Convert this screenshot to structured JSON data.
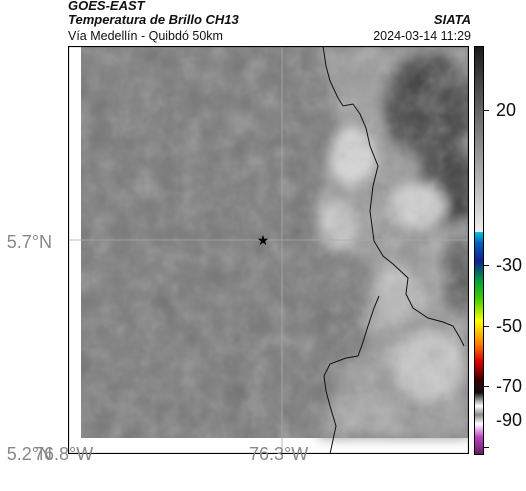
{
  "header": {
    "source": "GOES-EAST",
    "product": "Temperatura de Brillo CH13",
    "subtitle": "Vía Medellín - Quibdó 50km",
    "organization": "SIATA",
    "timestamp": "2024-03-14 11:29"
  },
  "axes": {
    "lat_ticks": [
      {
        "label": "5.7°N",
        "value": 5.7
      },
      {
        "label": "5.2°N",
        "value": 5.2
      }
    ],
    "lon_ticks": [
      {
        "label": "76.8°W",
        "value": -76.8
      },
      {
        "label": "76.3°W",
        "value": -76.3
      }
    ]
  },
  "map": {
    "marker": {
      "symbol": "★",
      "name": "star-marker"
    },
    "gridlines": true,
    "boundary_color": "#000000",
    "background_tone": "#777777"
  },
  "colorbar": {
    "tick_labels": [
      "20",
      "-30",
      "-50",
      "-70",
      "-90"
    ],
    "colors": {
      "warm_bottom": "#1a1a1a",
      "warm_top": "#e6e6e6",
      "cyan": "#00c8d8",
      "blue": "#1020a0",
      "green": "#00c000",
      "yellow": "#ffff00",
      "red": "#e00000",
      "magenta": "#c040c0"
    }
  }
}
